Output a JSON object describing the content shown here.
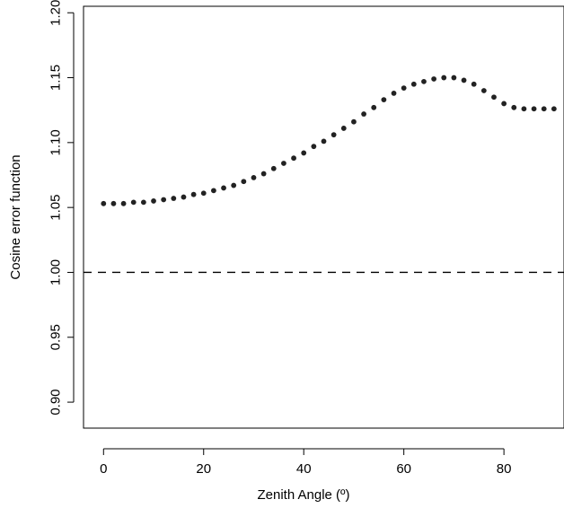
{
  "chart_data": {
    "type": "scatter",
    "title": "",
    "xlabel": "Zenith Angle (º)",
    "ylabel": "Cosine error function",
    "xlim": [
      -4,
      92
    ],
    "ylim": [
      0.88,
      1.205
    ],
    "xticks": [
      0,
      20,
      40,
      60,
      80
    ],
    "yticks": [
      0.9,
      0.95,
      1.0,
      1.05,
      1.1,
      1.15,
      1.2
    ],
    "xtick_labels": [
      "0",
      "20",
      "40",
      "60",
      "80"
    ],
    "ytick_labels": [
      "0.90",
      "0.95",
      "1.00",
      "1.05",
      "1.10",
      "1.15",
      "1.20"
    ],
    "grid": false,
    "legend": "none",
    "reference_line": {
      "y": 1.0,
      "style": "dashed"
    },
    "series": [
      {
        "x": [
          0,
          2,
          4,
          6,
          8,
          10,
          12,
          14,
          16,
          18,
          20,
          22,
          24,
          26,
          28,
          30,
          32,
          34,
          36,
          38,
          40,
          42,
          44,
          46,
          48,
          50,
          52,
          54,
          56,
          58,
          60,
          62,
          64,
          66,
          68,
          70,
          72,
          74,
          76,
          78,
          80,
          82,
          84,
          86,
          88,
          90
        ],
        "values": [
          1.053,
          1.053,
          1.053,
          1.054,
          1.054,
          1.055,
          1.056,
          1.057,
          1.058,
          1.06,
          1.061,
          1.063,
          1.065,
          1.067,
          1.07,
          1.073,
          1.076,
          1.08,
          1.084,
          1.088,
          1.092,
          1.097,
          1.101,
          1.106,
          1.111,
          1.116,
          1.122,
          1.127,
          1.133,
          1.138,
          1.142,
          1.145,
          1.147,
          1.149,
          1.15,
          1.15,
          1.148,
          1.145,
          1.14,
          1.135,
          1.13,
          1.127,
          1.126,
          1.126,
          1.126,
          1.126
        ]
      }
    ],
    "colors": {
      "points": "#222222",
      "axes": "#000000",
      "reference": "#000000"
    }
  }
}
